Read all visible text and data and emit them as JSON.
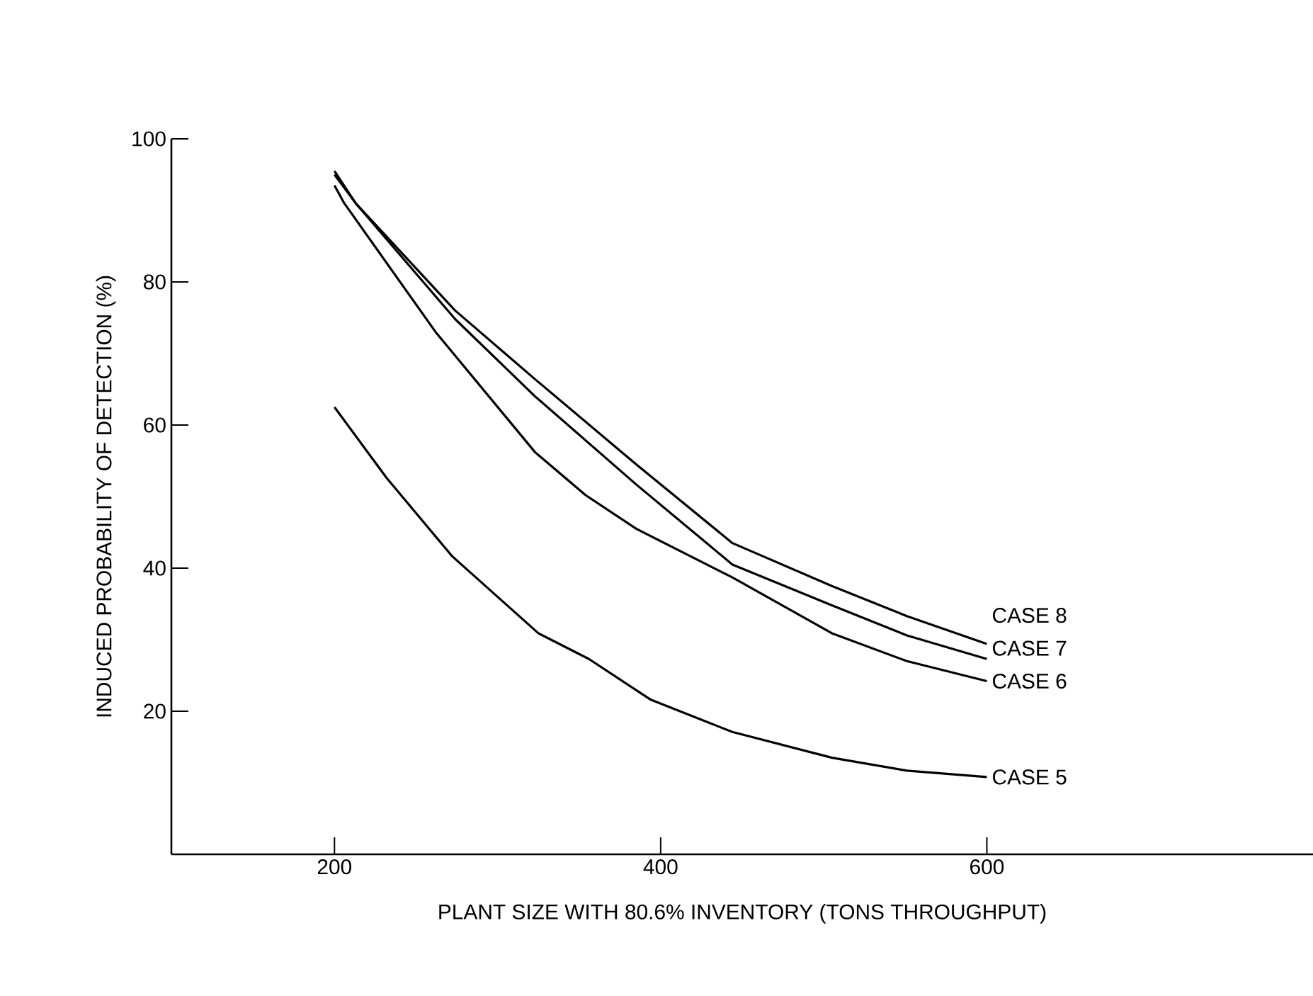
{
  "chart_data": {
    "type": "line",
    "xlabel": "PLANT SIZE WITH 80.6% INVENTORY (TONS THROUGHPUT)",
    "ylabel": "INDUCED PROBABILITY OF DETECTION (%)",
    "xlim": [
      100,
      800
    ],
    "ylim": [
      0,
      100
    ],
    "xticks": [
      200,
      400,
      600
    ],
    "yticks": [
      20,
      40,
      60,
      80,
      100
    ],
    "grid": false,
    "legend": false,
    "marker": "none",
    "line_style": "solid",
    "series": [
      {
        "name": "CASE 8",
        "color": "#000000",
        "x": [
          200,
          213,
          274,
          323,
          385,
          444,
          505,
          551,
          600
        ],
        "values": [
          95.5,
          91,
          76,
          66.4,
          54.5,
          43.5,
          37.5,
          33.3,
          29.4
        ]
      },
      {
        "name": "CASE 7",
        "color": "#000000",
        "x": [
          200,
          213,
          274,
          323,
          385,
          444,
          505,
          551,
          600
        ],
        "values": [
          95,
          91,
          74.8,
          64,
          51.7,
          40.5,
          34.8,
          30.6,
          27.3
        ]
      },
      {
        "name": "CASE 6",
        "color": "#000000",
        "x": [
          200,
          206,
          262,
          323,
          354,
          385,
          444,
          505,
          551,
          600
        ],
        "values": [
          93.5,
          91,
          73,
          56.2,
          50.2,
          45.5,
          38.7,
          30.9,
          27.0,
          24.2
        ]
      },
      {
        "name": "CASE 5",
        "color": "#000000",
        "x": [
          200,
          232,
          272,
          325,
          356,
          394,
          444,
          505,
          551,
          600
        ],
        "values": [
          62.5,
          52.6,
          41.7,
          30.9,
          27.3,
          21.6,
          17.1,
          13.5,
          11.7,
          10.8
        ]
      }
    ]
  }
}
